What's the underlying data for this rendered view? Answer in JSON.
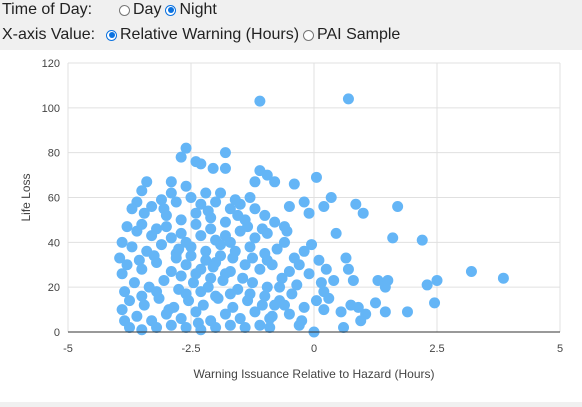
{
  "controls": {
    "time_of_day": {
      "label": "Time of Day:",
      "options": [
        {
          "label": "Day",
          "checked": false
        },
        {
          "label": "Night",
          "checked": true
        }
      ]
    },
    "x_axis_value": {
      "label": "X-axis Value:",
      "options": [
        {
          "label": "Relative Warning (Hours)",
          "checked": true
        },
        {
          "label": "PAI Sample",
          "checked": false
        }
      ]
    }
  },
  "colors": {
    "point": "#64b5f6",
    "grid": "#e0e0e0",
    "axis": "#333333"
  },
  "chart_data": {
    "type": "scatter",
    "xlabel": "Warning Issuance Relative to Hazard (Hours)",
    "ylabel": "Life Loss",
    "xlim": [
      -5,
      5
    ],
    "ylim": [
      0,
      120
    ],
    "xticks": [
      "-5",
      "-2.5",
      "0",
      "2.5",
      "5"
    ],
    "yticks": [
      "0",
      "20",
      "40",
      "60",
      "80",
      "100",
      "120"
    ],
    "grid": true,
    "series": [
      {
        "points": [
          [
            -1.1,
            103
          ],
          [
            0.7,
            104
          ],
          [
            -2.6,
            82
          ],
          [
            -2.7,
            78
          ],
          [
            -2.4,
            76
          ],
          [
            -2.3,
            75
          ],
          [
            -1.8,
            80
          ],
          [
            -1.8,
            73
          ],
          [
            -2.05,
            73
          ],
          [
            -1.1,
            72
          ],
          [
            -0.95,
            70
          ],
          [
            -1.2,
            67
          ],
          [
            -0.8,
            67
          ],
          [
            -0.4,
            66
          ],
          [
            0.05,
            69
          ],
          [
            -2.9,
            67
          ],
          [
            -3.4,
            67
          ],
          [
            -3.5,
            63
          ],
          [
            0.35,
            60
          ],
          [
            0.85,
            57
          ],
          [
            1.0,
            53
          ],
          [
            1.7,
            56
          ],
          [
            0.2,
            56
          ],
          [
            -0.5,
            56
          ],
          [
            -0.2,
            58
          ],
          [
            -0.1,
            53
          ],
          [
            0.45,
            44
          ],
          [
            1.6,
            42
          ],
          [
            2.2,
            41
          ],
          [
            0.65,
            33
          ],
          [
            0.7,
            28
          ],
          [
            0.8,
            23
          ],
          [
            1.3,
            23
          ],
          [
            1.5,
            23
          ],
          [
            1.45,
            20
          ],
          [
            2.3,
            21
          ],
          [
            2.5,
            23
          ],
          [
            3.2,
            27
          ],
          [
            3.85,
            24
          ],
          [
            1.25,
            13
          ],
          [
            1.45,
            9
          ],
          [
            1.9,
            9
          ],
          [
            2.45,
            13
          ],
          [
            0.2,
            10
          ],
          [
            0.55,
            9
          ],
          [
            0.75,
            12
          ],
          [
            0.9,
            11
          ],
          [
            1.05,
            8
          ],
          [
            0.2,
            18
          ],
          [
            0.4,
            23
          ],
          [
            0.0,
            0
          ],
          [
            -0.3,
            3
          ],
          [
            0.6,
            2
          ],
          [
            0.95,
            5
          ],
          [
            -0.2,
            36
          ],
          [
            -0.4,
            33
          ],
          [
            -0.05,
            39
          ],
          [
            0.1,
            32
          ],
          [
            0.25,
            28
          ],
          [
            -0.55,
            45
          ],
          [
            -0.6,
            40
          ],
          [
            -0.3,
            30
          ],
          [
            -0.1,
            26
          ],
          [
            0.15,
            22
          ],
          [
            0.3,
            15
          ],
          [
            -0.7,
            20
          ],
          [
            -0.8,
            12
          ],
          [
            -0.9,
            6
          ],
          [
            -0.5,
            8
          ],
          [
            -0.45,
            17
          ],
          [
            -0.2,
            11
          ],
          [
            0.05,
            14
          ],
          [
            -1.3,
            60
          ],
          [
            -1.5,
            57
          ],
          [
            -1.7,
            55
          ],
          [
            -1.4,
            50
          ],
          [
            -1.9,
            62
          ],
          [
            -2.2,
            62
          ],
          [
            -2.5,
            60
          ],
          [
            -2.8,
            58
          ],
          [
            -3.1,
            59
          ],
          [
            -3.3,
            56
          ],
          [
            -3.6,
            58
          ],
          [
            -3.7,
            55
          ],
          [
            -3.45,
            53
          ],
          [
            -3.05,
            55
          ],
          [
            -2.9,
            62
          ],
          [
            -2.6,
            65
          ],
          [
            -2.3,
            57
          ],
          [
            -2.0,
            58
          ],
          [
            -1.6,
            59
          ],
          [
            -1.2,
            55
          ],
          [
            -1.0,
            52
          ],
          [
            -0.8,
            49
          ],
          [
            -0.6,
            47
          ],
          [
            -3.8,
            47
          ],
          [
            -3.9,
            40
          ],
          [
            -3.95,
            33
          ],
          [
            -3.9,
            26
          ],
          [
            -3.85,
            18
          ],
          [
            -3.9,
            10
          ],
          [
            -3.85,
            5
          ],
          [
            -3.75,
            2
          ],
          [
            -3.5,
            1
          ],
          [
            -3.2,
            2
          ],
          [
            -2.9,
            3
          ],
          [
            -2.6,
            2
          ],
          [
            -2.3,
            1
          ],
          [
            -2.0,
            2
          ],
          [
            -1.7,
            3
          ],
          [
            -1.4,
            2
          ],
          [
            -1.1,
            3
          ],
          [
            -0.9,
            2
          ],
          [
            -3.6,
            45
          ],
          [
            -3.3,
            43
          ],
          [
            -3.0,
            47
          ],
          [
            -2.7,
            44
          ],
          [
            -2.4,
            48
          ],
          [
            -2.1,
            46
          ],
          [
            -1.8,
            43
          ],
          [
            -1.5,
            45
          ],
          [
            -1.2,
            42
          ],
          [
            -0.95,
            44
          ],
          [
            -3.7,
            38
          ],
          [
            -3.4,
            36
          ],
          [
            -3.1,
            39
          ],
          [
            -2.8,
            35
          ],
          [
            -2.5,
            38
          ],
          [
            -2.2,
            36
          ],
          [
            -1.9,
            39
          ],
          [
            -1.6,
            36
          ],
          [
            -1.3,
            38
          ],
          [
            -1.0,
            35
          ],
          [
            -0.75,
            37
          ],
          [
            -3.8,
            30
          ],
          [
            -3.5,
            28
          ],
          [
            -3.2,
            31
          ],
          [
            -2.9,
            27
          ],
          [
            -2.6,
            30
          ],
          [
            -2.3,
            28
          ],
          [
            -2.0,
            31
          ],
          [
            -1.7,
            27
          ],
          [
            -1.4,
            30
          ],
          [
            -1.1,
            28
          ],
          [
            -0.85,
            30
          ],
          [
            -3.65,
            22
          ],
          [
            -3.35,
            20
          ],
          [
            -3.05,
            23
          ],
          [
            -2.75,
            19
          ],
          [
            -2.45,
            22
          ],
          [
            -2.15,
            20
          ],
          [
            -1.85,
            23
          ],
          [
            -1.55,
            19
          ],
          [
            -1.25,
            22
          ],
          [
            -0.95,
            20
          ],
          [
            -0.65,
            24
          ],
          [
            -3.75,
            14
          ],
          [
            -3.45,
            12
          ],
          [
            -3.15,
            15
          ],
          [
            -2.85,
            11
          ],
          [
            -2.55,
            14
          ],
          [
            -2.25,
            12
          ],
          [
            -1.95,
            15
          ],
          [
            -1.65,
            11
          ],
          [
            -1.35,
            14
          ],
          [
            -1.05,
            12
          ],
          [
            -0.7,
            14
          ],
          [
            -3.6,
            7
          ],
          [
            -3.3,
            5
          ],
          [
            -3.0,
            8
          ],
          [
            -2.7,
            6
          ],
          [
            -2.4,
            9
          ],
          [
            -2.1,
            5
          ],
          [
            -1.8,
            8
          ],
          [
            -1.5,
            6
          ],
          [
            -1.2,
            9
          ],
          [
            -0.85,
            7
          ],
          [
            -3.0,
            52
          ],
          [
            -2.7,
            50
          ],
          [
            -2.4,
            53
          ],
          [
            -2.1,
            51
          ],
          [
            -1.8,
            49
          ],
          [
            -2.9,
            42
          ],
          [
            -2.6,
            40
          ],
          [
            -2.3,
            43
          ],
          [
            -2.0,
            41
          ],
          [
            -1.7,
            40
          ],
          [
            -2.8,
            33
          ],
          [
            -2.5,
            34
          ],
          [
            -2.2,
            32
          ],
          [
            -1.9,
            34
          ],
          [
            -2.7,
            25
          ],
          [
            -2.4,
            26
          ],
          [
            -2.1,
            24
          ],
          [
            -1.8,
            26
          ],
          [
            -2.6,
            17
          ],
          [
            -2.3,
            18
          ],
          [
            -2.0,
            16
          ],
          [
            -1.7,
            17
          ],
          [
            -3.5,
            48
          ],
          [
            -3.2,
            46
          ],
          [
            -1.35,
            47
          ],
          [
            -1.05,
            46
          ],
          [
            -3.55,
            32
          ],
          [
            -3.25,
            34
          ],
          [
            -1.25,
            33
          ],
          [
            -0.95,
            32
          ],
          [
            -3.5,
            16
          ],
          [
            -3.2,
            18
          ],
          [
            -1.3,
            17
          ],
          [
            -1.0,
            16
          ],
          [
            -0.5,
            27
          ],
          [
            -0.35,
            21
          ],
          [
            -0.6,
            12
          ],
          [
            -0.25,
            5
          ],
          [
            -1.55,
            52
          ],
          [
            -2.15,
            54
          ],
          [
            -2.75,
            37
          ],
          [
            -2.05,
            29
          ],
          [
            -1.45,
            24
          ],
          [
            -2.95,
            10
          ],
          [
            -2.35,
            4
          ],
          [
            -1.65,
            33
          ]
        ]
      }
    ]
  }
}
